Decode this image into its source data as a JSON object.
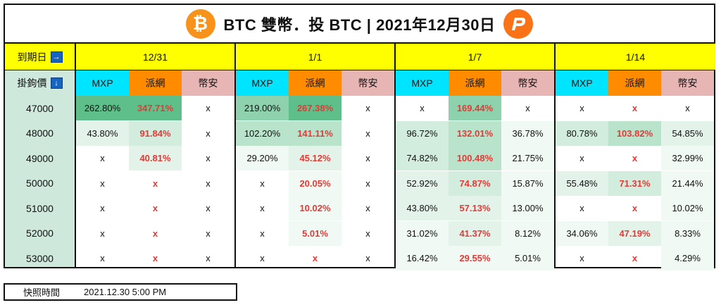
{
  "title": "BTC 雙幣．投 BTC | 2021年12月30日",
  "btc_logo_glyph": "₿",
  "row_header": {
    "expiry_label": "到期日",
    "expiry_icon": "→",
    "strike_label": "掛鉤價",
    "strike_icon": "↓"
  },
  "strikes": [
    "47000",
    "48000",
    "49000",
    "50000",
    "51000",
    "52000",
    "53000"
  ],
  "providers": [
    "MXP",
    "派網",
    "幣安"
  ],
  "colors": {
    "mxp": "#00e5ff",
    "pai": "#ff8c00",
    "bi": "#e8b5b5",
    "date_bar": "#ffff00",
    "highlight_text": "#e53935"
  },
  "groups": [
    {
      "date": "12/31",
      "rows": [
        [
          "262.80%",
          "347.71%",
          "x"
        ],
        [
          "43.80%",
          "91.84%",
          "x"
        ],
        [
          "x",
          "40.81%",
          "x"
        ],
        [
          "x",
          "x",
          "x"
        ],
        [
          "x",
          "x",
          "x"
        ],
        [
          "x",
          "x",
          "x"
        ],
        [
          "x",
          "x",
          "x"
        ]
      ]
    },
    {
      "date": "1/1",
      "rows": [
        [
          "219.00%",
          "267.38%",
          "x"
        ],
        [
          "102.20%",
          "141.11%",
          "x"
        ],
        [
          "29.20%",
          "45.12%",
          "x"
        ],
        [
          "x",
          "20.05%",
          "x"
        ],
        [
          "x",
          "10.02%",
          "x"
        ],
        [
          "x",
          "5.01%",
          "x"
        ],
        [
          "x",
          "x",
          "x"
        ]
      ]
    },
    {
      "date": "1/7",
      "rows": [
        [
          "x",
          "169.44%",
          "x"
        ],
        [
          "96.72%",
          "132.01%",
          "36.78%"
        ],
        [
          "74.82%",
          "100.48%",
          "21.75%"
        ],
        [
          "52.92%",
          "74.87%",
          "15.87%"
        ],
        [
          "43.80%",
          "57.13%",
          "13.00%"
        ],
        [
          "31.02%",
          "41.37%",
          "8.12%"
        ],
        [
          "16.42%",
          "29.55%",
          "5.01%"
        ]
      ]
    },
    {
      "date": "1/14",
      "rows": [
        [
          "x",
          "x",
          "x"
        ],
        [
          "80.78%",
          "103.82%",
          "54.85%"
        ],
        [
          "x",
          "x",
          "32.99%"
        ],
        [
          "55.48%",
          "71.31%",
          "21.44%"
        ],
        [
          "x",
          "x",
          "10.02%"
        ],
        [
          "34.06%",
          "47.19%",
          "8.33%"
        ],
        [
          "x",
          "x",
          "4.29%"
        ]
      ]
    }
  ],
  "snapshot": {
    "label": "快照時間",
    "value": "2021.12.30 5:00 PM"
  }
}
